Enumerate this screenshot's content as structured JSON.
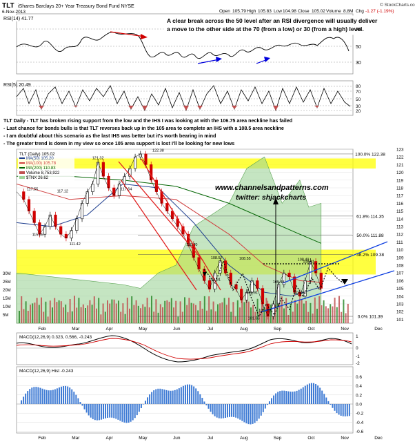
{
  "header": {
    "ticker": "TLT",
    "name": "iShares Barclays 20+ Year Treasury Bond Fund NYSE",
    "date": "6-Nov-2013",
    "open_label": "Open",
    "open": "105.79",
    "high_label": "High",
    "high": "105.83",
    "low_label": "Low",
    "low": "104.98",
    "close_label": "Close",
    "close": "105.02",
    "volume_label": "Volume",
    "volume": "8.8M",
    "chg_label": "Chg",
    "chg": "-1.27 (-1.19%)",
    "brand": "© StockCharts.com"
  },
  "rsi14": {
    "label": "RSI(14) 41.77",
    "ticks": [
      "70",
      "50",
      "30"
    ],
    "note": "A clear break across the 50 level after an RSI divergence will usually deliver a move to the other side at the 70 (from a low) or 30 (from a high) level."
  },
  "rsi5": {
    "label": "RSI(5) 20.49",
    "ticks": [
      "80",
      "70",
      "50",
      "30",
      "20"
    ]
  },
  "commentary": [
    "TLT Daily - TLT has broken rising support from the low and the IHS I was looking at with the 106.75 area neckline has failed",
    "- Last chance for bonds bulls is that TLT reverses back up in the 105 area to complete an IHS with a 108.5 area neckline",
    "- I am doubtful about this scenario as the last IHS was better but it's worth bearing in mind",
    "- The greater trend is down in my view so once 105 area support is lost I'll be looking for new lows"
  ],
  "legend": {
    "main": "TLT (Daily) 105.02",
    "ma50": "MA(50) 105.20",
    "ma100": "MA(100) 105.78",
    "ma200": "MA(200) 110.83",
    "volume": "Volume 8,753,922",
    "tnx": "$TNX 26.62"
  },
  "watermark": {
    "site": "www.channelsandpatterns.com",
    "twitter": "twitter: shjackcharts"
  },
  "price_annotations": [
    {
      "text": "122.38",
      "x": 3.0,
      "y": 122.7
    },
    {
      "text": "121.32",
      "x": -0.4,
      "y": 121.7
    },
    {
      "text": "117.55",
      "x": -4.1,
      "y": 117.7
    },
    {
      "text": "117.12",
      "x": -2.4,
      "y": 117.4
    },
    {
      "text": "117.64",
      "x": 1.2,
      "y": 117.7
    },
    {
      "text": "115.65",
      "x": -3.8,
      "y": 111.8
    },
    {
      "text": "111.42",
      "x": -1.7,
      "y": 110.6
    },
    {
      "text": "110.70",
      "x": 4.9,
      "y": 110.5
    },
    {
      "text": "108.57",
      "x": 6.3,
      "y": 108.8
    },
    {
      "text": "108.55",
      "x": 7.9,
      "y": 108.7
    },
    {
      "text": "108.49",
      "x": 11.2,
      "y": 108.6
    },
    {
      "text": "108.41",
      "x": 11.5,
      "y": 108.3
    },
    {
      "text": "104.91",
      "x": 6.2,
      "y": 106.0
    },
    {
      "text": "104.91",
      "x": 8.3,
      "y": 104.3
    },
    {
      "text": "105.48",
      "x": 9.8,
      "y": 105.7
    },
    {
      "text": "103.99",
      "x": 11.0,
      "y": 104.3
    },
    {
      "text": "101.39",
      "x": 9.0,
      "y": 102.0
    },
    {
      "text": "101.65",
      "x": 8.4,
      "y": 101.0
    }
  ],
  "fib_levels": [
    {
      "label": "100.0% 122.38",
      "value": 122.38
    },
    {
      "label": "61.8% 114.35",
      "value": 114.35
    },
    {
      "label": "50.0% 111.88",
      "value": 111.88
    },
    {
      "label": "38.2% 109.38",
      "value": 109.38
    },
    {
      "label": "0.0% 101.39",
      "value": 101.39
    }
  ],
  "macd_line": {
    "label": "MACD(12,26,9) 0.323, 0.566, -0.243",
    "ticks": [
      "1",
      "0",
      "-1",
      "-2"
    ]
  },
  "macd_hist": {
    "label": "MACD(12,26,9) Hist -0.243",
    "ticks": [
      "0.6",
      "0.4",
      "0.2",
      "0.0",
      "-0.2",
      "-0.4",
      "-0.6"
    ]
  },
  "chart_data": {
    "type": "line",
    "title": "TLT iShares Barclays 20+ Year Treasury Bond Fund NYSE",
    "x_labels": [
      "Feb",
      "Mar",
      "Apr",
      "May",
      "Jun",
      "Jul",
      "Aug",
      "Sep",
      "Oct",
      "Nov",
      "Dec"
    ],
    "xlim": [
      -5,
      14
    ],
    "y_ticks": [
      101,
      102,
      103,
      104,
      105,
      106,
      107,
      108,
      109,
      110,
      111,
      112,
      113,
      114,
      115,
      116,
      117,
      118,
      119,
      120,
      121,
      122,
      123
    ],
    "ylim": [
      100.5,
      123
    ],
    "volume_ticks": [
      "30M",
      "25M",
      "20M",
      "15M",
      "10M",
      "5M"
    ],
    "resistance_zones": [
      [
        120.5,
        121.8
      ],
      [
        106.8,
        108.8
      ],
      [
        108.8,
        110.0
      ]
    ],
    "series": [
      {
        "name": "TLT (Daily)",
        "x": [
          -5.0,
          -4.6,
          -4.3,
          -4.0,
          -3.7,
          -3.4,
          -3.1,
          -2.8,
          -2.5,
          -2.2,
          -1.9,
          -1.6,
          -1.3,
          -1.0,
          -0.7,
          -0.4,
          -0.1,
          0.2,
          0.5,
          0.8,
          1.1,
          1.4,
          1.7,
          2.0,
          2.3,
          2.6,
          2.9,
          3.2,
          3.5,
          3.8,
          4.1,
          4.4,
          4.7,
          5.0,
          5.3,
          5.6,
          5.9,
          6.2,
          6.5,
          6.8,
          7.1,
          7.4,
          7.7,
          8.0,
          8.3,
          8.6,
          8.9,
          9.2,
          9.5,
          9.8,
          10.1,
          10.4,
          10.7,
          11.0,
          11.3,
          11.6,
          11.9,
          12.2
        ],
        "y": [
          117.5,
          116.5,
          115.0,
          113.5,
          112.0,
          113.0,
          114.5,
          113.0,
          112.0,
          111.5,
          112.5,
          114.0,
          116.0,
          117.5,
          118.5,
          121.3,
          119.5,
          118.0,
          117.0,
          118.5,
          119.5,
          120.5,
          122.0,
          122.38,
          121.0,
          119.0,
          117.5,
          116.0,
          115.0,
          114.0,
          113.0,
          112.0,
          110.7,
          109.0,
          107.5,
          106.0,
          104.9,
          107.0,
          108.57,
          107.0,
          105.5,
          104.91,
          103.5,
          104.5,
          106.0,
          105.0,
          103.0,
          101.39,
          103.0,
          105.5,
          107.0,
          106.5,
          104.5,
          103.99,
          106.0,
          108.49,
          107.0,
          105.02
        ]
      },
      {
        "name": "MA(50)",
        "x": [
          -5.0,
          -3.0,
          -1.0,
          1.0,
          3.0,
          5.0,
          7.0,
          9.0,
          10.5,
          12.2
        ],
        "y": [
          113.5,
          113.0,
          114.5,
          118.5,
          118.0,
          113.5,
          108.0,
          104.5,
          104.0,
          105.2
        ]
      },
      {
        "name": "MA(100)",
        "x": [
          -5.0,
          -2.0,
          1.0,
          4.0,
          7.0,
          9.0,
          11.0,
          12.2
        ],
        "y": [
          118.5,
          116.5,
          117.0,
          116.5,
          112.0,
          108.0,
          106.0,
          105.78
        ]
      },
      {
        "name": "MA(200)",
        "x": [
          -5.0,
          -2.0,
          1.0,
          4.0,
          7.0,
          9.0,
          11.0,
          12.2
        ],
        "y": [
          119.5,
          119.5,
          119.0,
          118.2,
          116.0,
          114.0,
          112.0,
          110.83
        ]
      },
      {
        "name": "$TNX",
        "x": [
          -5.0,
          -3.0,
          -1.0,
          1.0,
          2.0,
          3.0,
          4.0,
          5.0,
          6.0,
          7.0,
          8.0,
          9.0,
          10.0,
          11.0,
          11.5,
          12.2
        ],
        "y": [
          107.0,
          106.5,
          106.0,
          105.5,
          105.0,
          107.0,
          108.0,
          113.0,
          114.5,
          116.0,
          120.5,
          122.0,
          116.0,
          119.0,
          115.5,
          116.0
        ]
      }
    ]
  }
}
